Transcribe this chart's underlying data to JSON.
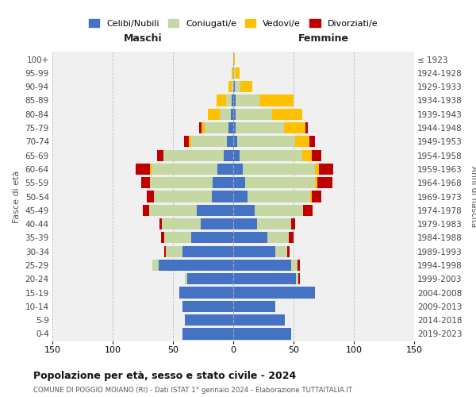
{
  "age_groups": [
    "0-4",
    "5-9",
    "10-14",
    "15-19",
    "20-24",
    "25-29",
    "30-34",
    "35-39",
    "40-44",
    "45-49",
    "50-54",
    "55-59",
    "60-64",
    "65-69",
    "70-74",
    "75-79",
    "80-84",
    "85-89",
    "90-94",
    "95-99",
    "100+"
  ],
  "birth_years": [
    "2019-2023",
    "2014-2018",
    "2009-2013",
    "2004-2008",
    "1999-2003",
    "1994-1998",
    "1989-1993",
    "1984-1988",
    "1979-1983",
    "1974-1978",
    "1969-1973",
    "1964-1968",
    "1959-1963",
    "1954-1958",
    "1949-1953",
    "1944-1948",
    "1939-1943",
    "1934-1938",
    "1929-1933",
    "1924-1928",
    "≤ 1923"
  ],
  "colors": {
    "celibi": "#4472c4",
    "coniugati": "#c5d8a4",
    "vedovi": "#ffc000",
    "divorziati": "#c00000"
  },
  "maschi": {
    "celibi": [
      42,
      40,
      42,
      45,
      38,
      62,
      42,
      35,
      27,
      30,
      18,
      17,
      13,
      8,
      5,
      4,
      2,
      1,
      0,
      0,
      0
    ],
    "coniugati": [
      0,
      0,
      0,
      0,
      2,
      5,
      14,
      22,
      32,
      40,
      48,
      52,
      55,
      50,
      30,
      20,
      9,
      5,
      1,
      0,
      0
    ],
    "vedovi": [
      0,
      0,
      0,
      0,
      0,
      0,
      0,
      0,
      0,
      0,
      0,
      0,
      1,
      0,
      2,
      2,
      10,
      8,
      3,
      1,
      0
    ],
    "divorziati": [
      0,
      0,
      0,
      0,
      0,
      0,
      1,
      3,
      2,
      5,
      6,
      7,
      12,
      5,
      4,
      2,
      0,
      0,
      0,
      0,
      0
    ]
  },
  "femmine": {
    "celibi": [
      48,
      43,
      35,
      68,
      52,
      48,
      35,
      28,
      20,
      18,
      12,
      10,
      8,
      5,
      3,
      2,
      2,
      2,
      1,
      0,
      0
    ],
    "coniugati": [
      0,
      0,
      0,
      0,
      2,
      5,
      10,
      18,
      28,
      40,
      52,
      58,
      60,
      52,
      48,
      40,
      30,
      20,
      5,
      2,
      0
    ],
    "vedovi": [
      0,
      0,
      0,
      0,
      0,
      0,
      0,
      0,
      0,
      0,
      1,
      2,
      3,
      8,
      12,
      18,
      25,
      28,
      10,
      3,
      1
    ],
    "divorziati": [
      0,
      0,
      0,
      0,
      1,
      2,
      2,
      4,
      3,
      8,
      8,
      12,
      12,
      8,
      5,
      2,
      0,
      0,
      0,
      0,
      0
    ]
  },
  "title": "Popolazione per età, sesso e stato civile - 2024",
  "subtitle": "COMUNE DI POGGIO MOIANO (RI) - Dati ISTAT 1° gennaio 2024 - Elaborazione TUTTAITALIA.IT",
  "xlabel_left": "Maschi",
  "xlabel_right": "Femmine",
  "ylabel_left": "Fasce di età",
  "ylabel_right": "Anni di nascita",
  "legend_labels": [
    "Celibi/Nubili",
    "Coniugati/e",
    "Vedovi/e",
    "Divorziati/e"
  ],
  "xlim": 150,
  "background_color": "#ffffff",
  "grid_color": "#bbbbbb"
}
